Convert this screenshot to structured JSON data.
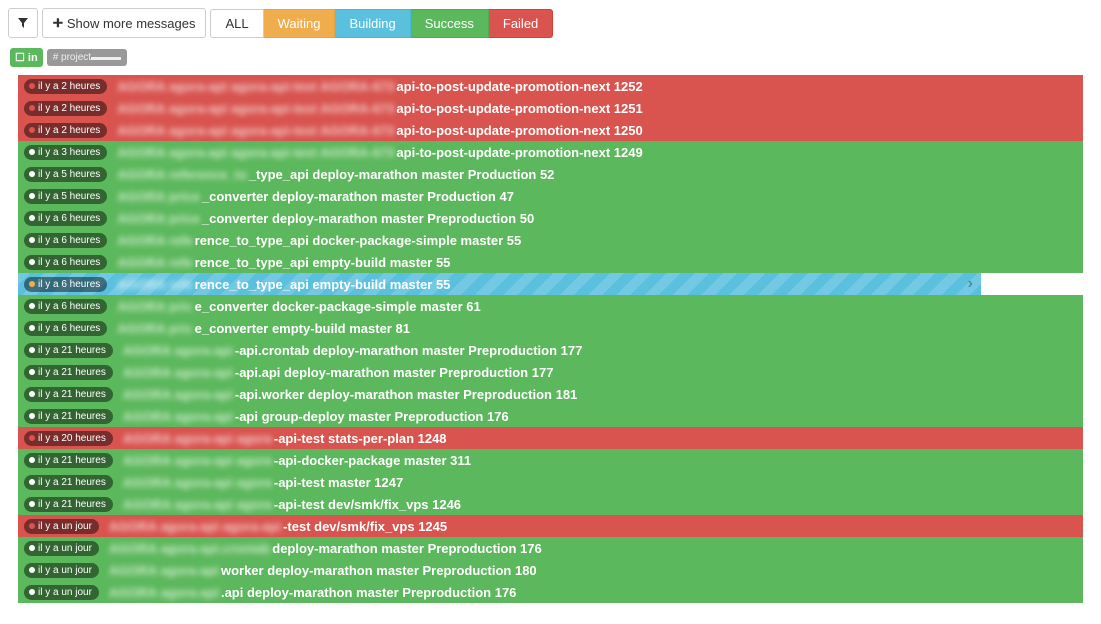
{
  "toolbar": {
    "show_more_label": "Show more messages",
    "tabs": {
      "all": "ALL",
      "waiting": "Waiting",
      "building": "Building",
      "success": "Success",
      "failed": "Failed"
    }
  },
  "project": {
    "in_label": "☐ in",
    "proj_label": "# project▬▬▬"
  },
  "colors": {
    "failed": "#d9534f",
    "success": "#5cb85c",
    "building": "#5bc0de",
    "waiting": "#f0ad4e"
  },
  "builds": [
    {
      "status": "failed",
      "time": "il y a 2 heures",
      "dot": "red",
      "blur": "AGORA agora-api agora-api-test AGORA-673",
      "text": "api-to-post-update-promotion-next 1252"
    },
    {
      "status": "failed",
      "time": "il y a 2 heures",
      "dot": "red",
      "blur": "AGORA agora-api agora-api-test AGORA-673",
      "text": "api-to-post-update-promotion-next 1251"
    },
    {
      "status": "failed",
      "time": "il y a 2 heures",
      "dot": "red",
      "blur": "AGORA agora-api agora-api-test AGORA-673",
      "text": "api-to-post-update-promotion-next 1250"
    },
    {
      "status": "success",
      "time": "il y a 3 heures",
      "dot": "",
      "blur": "AGORA agora-api agora-api-test AGORA-673",
      "text": "api-to-post-update-promotion-next 1249"
    },
    {
      "status": "success",
      "time": "il y a 5 heures",
      "dot": "",
      "blur": "AGORA reference_to",
      "text": "_type_api deploy-marathon master Production 52"
    },
    {
      "status": "success",
      "time": "il y a 5 heures",
      "dot": "",
      "blur": "AGORA price",
      "text": "_converter deploy-marathon master Production 47"
    },
    {
      "status": "success",
      "time": "il y a 6 heures",
      "dot": "",
      "blur": "AGORA price",
      "text": "_converter deploy-marathon master Preproduction 50"
    },
    {
      "status": "success",
      "time": "il y a 6 heures",
      "dot": "",
      "blur": "AGORA refe",
      "text": "rence_to_type_api docker-package-simple master 55"
    },
    {
      "status": "success",
      "time": "il y a 6 heures",
      "dot": "",
      "blur": "AGORA refe",
      "text": "rence_to_type_api empty-build master 55"
    },
    {
      "status": "building",
      "time": "il y a 6 heures",
      "dot": "yellow",
      "blur": "AGORA refe",
      "text": "rence_to_type_api empty-build master 55"
    },
    {
      "status": "success",
      "time": "il y a 6 heures",
      "dot": "",
      "blur": "AGORA pric",
      "text": "e_converter docker-package-simple master 61"
    },
    {
      "status": "success",
      "time": "il y a 6 heures",
      "dot": "",
      "blur": "AGORA pric",
      "text": "e_converter empty-build master 81"
    },
    {
      "status": "success",
      "time": "il y a 21 heures",
      "dot": "",
      "blur": "AGORA agora-api",
      "text": "-api.crontab deploy-marathon master Preproduction 177"
    },
    {
      "status": "success",
      "time": "il y a 21 heures",
      "dot": "",
      "blur": "AGORA agora-api",
      "text": "-api.api deploy-marathon master Preproduction 177"
    },
    {
      "status": "success",
      "time": "il y a 21 heures",
      "dot": "",
      "blur": "AGORA agora-api",
      "text": "-api.worker deploy-marathon master Preproduction 181"
    },
    {
      "status": "success",
      "time": "il y a 21 heures",
      "dot": "",
      "blur": "AGORA agora-api",
      "text": "-api group-deploy master Preproduction 176"
    },
    {
      "status": "failed",
      "time": "il y a 20 heures",
      "dot": "red",
      "blur": "AGORA agora-api agora",
      "text": "-api-test stats-per-plan 1248"
    },
    {
      "status": "success",
      "time": "il y a 21 heures",
      "dot": "",
      "blur": "AGORA agora-api agora",
      "text": "-api-docker-package master 311"
    },
    {
      "status": "success",
      "time": "il y a 21 heures",
      "dot": "",
      "blur": "AGORA agora-api agora",
      "text": "-api-test master 1247"
    },
    {
      "status": "success",
      "time": "il y a 21 heures",
      "dot": "",
      "blur": "AGORA agora-api agora",
      "text": "-api-test dev/smk/fix_vps 1246"
    },
    {
      "status": "failed",
      "time": "il y a un jour",
      "dot": "red",
      "blur": "AGORA agora-api agora-api",
      "text": "-test dev/smk/fix_vps 1245"
    },
    {
      "status": "success",
      "time": "il y a un jour",
      "dot": "",
      "blur": "AGORA agora-api.crontab",
      "text": " deploy-marathon master Preproduction 176"
    },
    {
      "status": "success",
      "time": "il y a un jour",
      "dot": "",
      "blur": "AGORA agora-api",
      "text": " worker deploy-marathon master Preproduction 180"
    },
    {
      "status": "success",
      "time": "il y a un jour",
      "dot": "",
      "blur": "AGORA agora-api",
      "text": ".api deploy-marathon master Preproduction 176"
    }
  ]
}
